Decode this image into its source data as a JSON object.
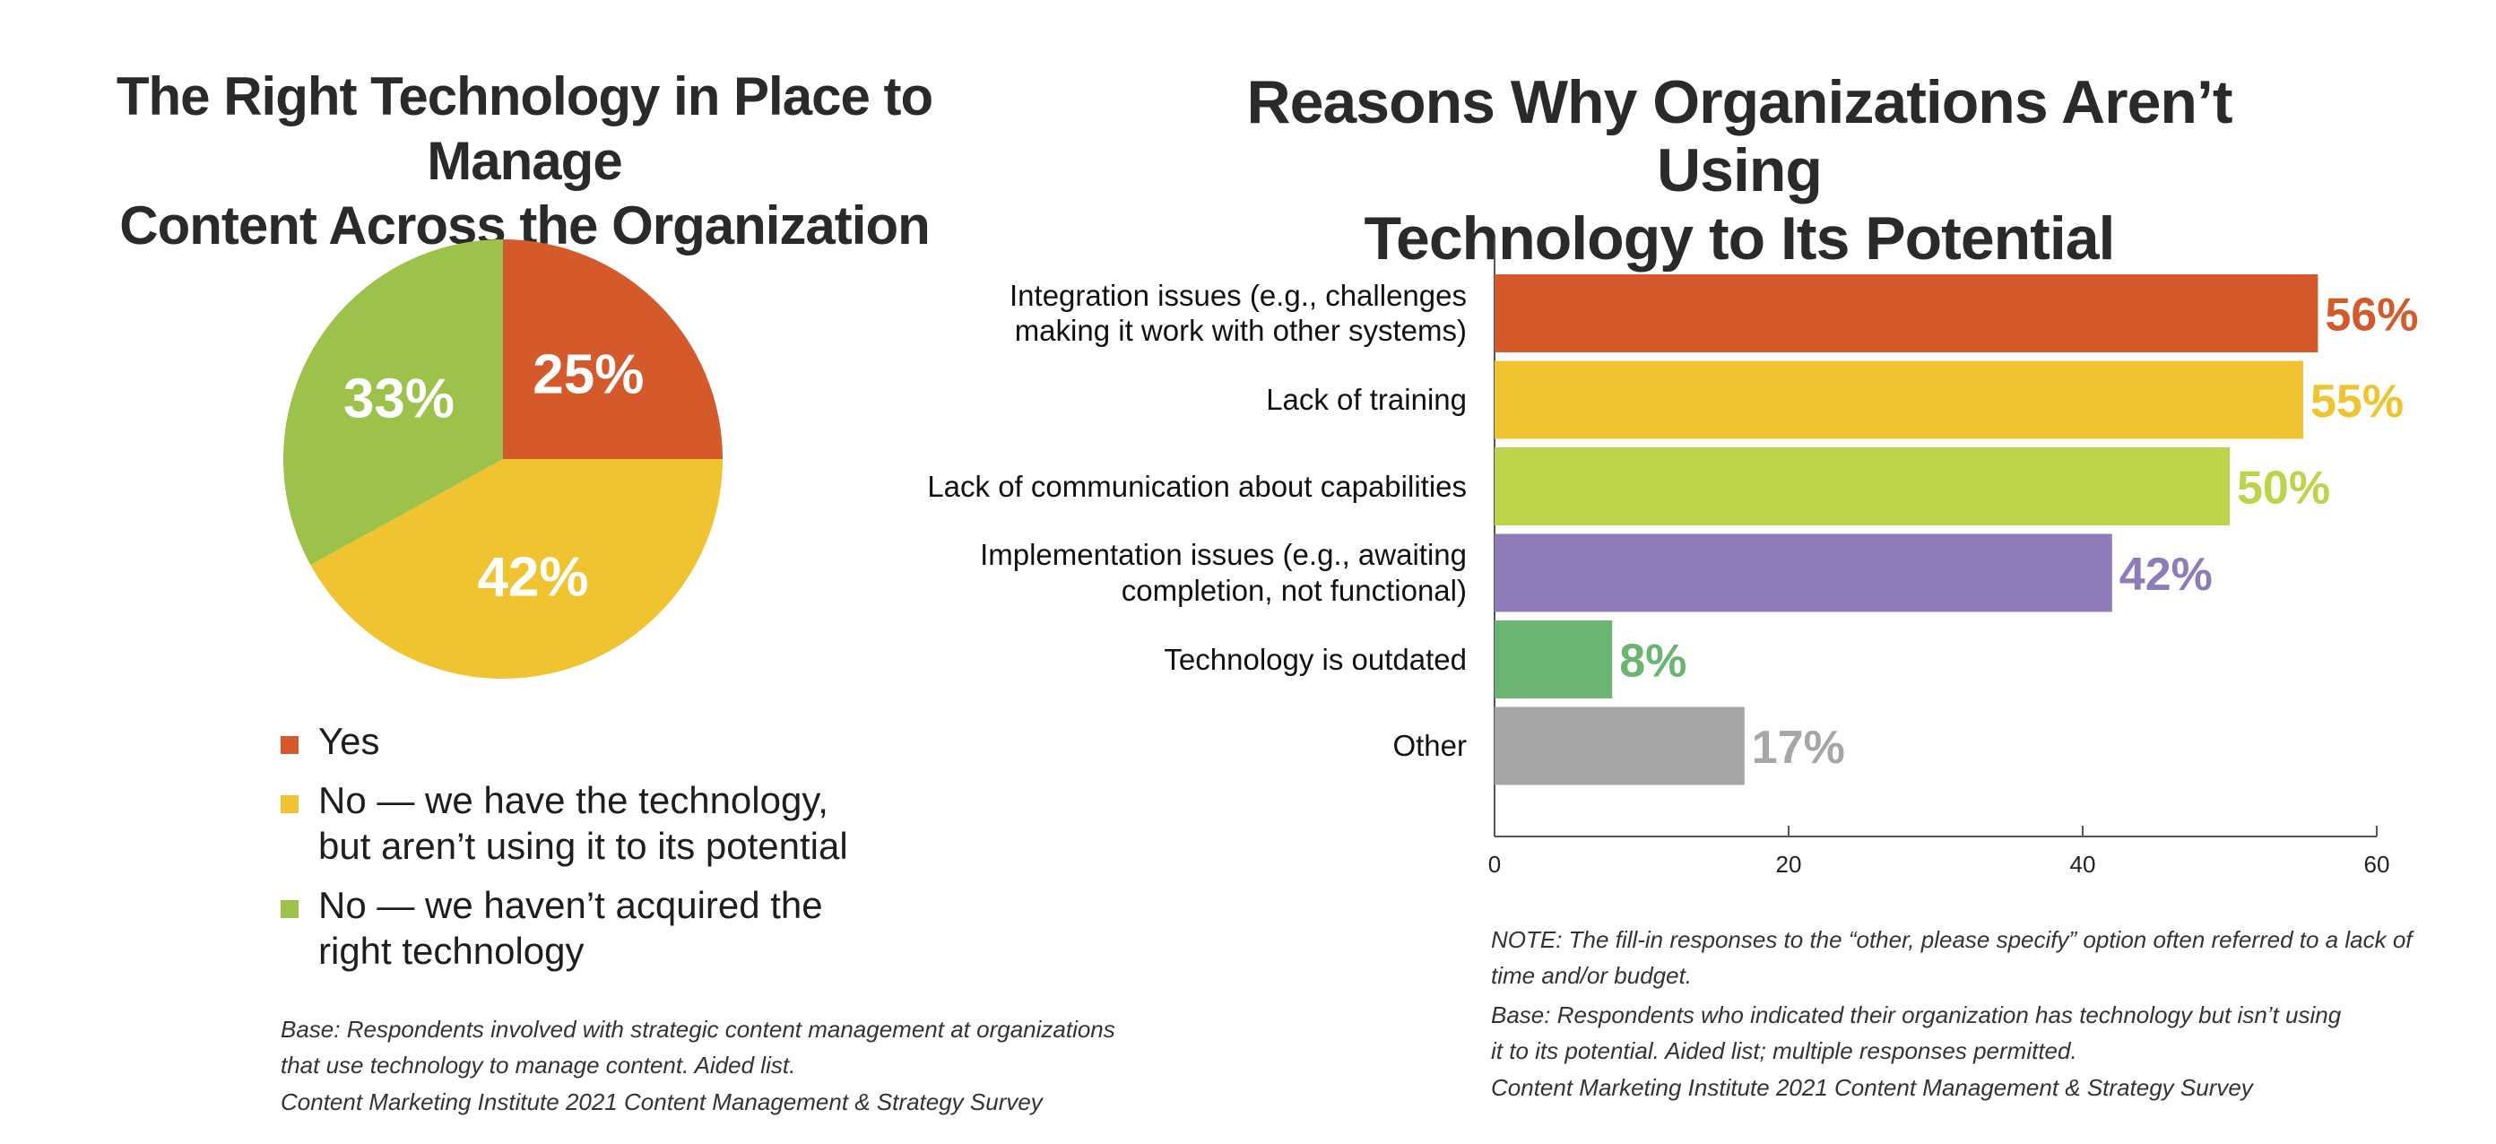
{
  "left_title": {
    "line1": "The Right Technology in Place to Manage",
    "line2": "Content Across the Organization"
  },
  "right_title": {
    "line1": "Reasons Why Organizations Aren’t Using",
    "line2": "Technology to Its Potential"
  },
  "chart_data": [
    {
      "type": "pie",
      "title": "The Right Technology in Place to Manage Content Across the Organization",
      "slices": [
        {
          "label": "Yes",
          "value": 25,
          "display": "25%",
          "color": "#d45a2b"
        },
        {
          "label": "No — we have the technology, but aren’t using it to its potential",
          "value": 42,
          "display": "42%",
          "color": "#f0c430"
        },
        {
          "label": "No — we haven’t acquired the right technology",
          "value": 33,
          "display": "33%",
          "color": "#9cc24a"
        }
      ]
    },
    {
      "type": "bar",
      "orientation": "horizontal",
      "title": "Reasons Why Organizations Aren’t Using Technology to Its Potential",
      "categories": [
        "Integration issues (e.g., challenges making it work with other systems)",
        "Lack of training",
        "Lack of communication about capabilities",
        "Implementation issues (e.g., awaiting completion, not functional)",
        "Technology is outdated",
        "Other"
      ],
      "category_lines": [
        [
          "Integration issues (e.g., challenges",
          "making it work with other systems)"
        ],
        [
          "Lack of training"
        ],
        [
          "Lack of communication about capabilities"
        ],
        [
          "Implementation issues (e.g., awaiting",
          "completion, not functional)"
        ],
        [
          "Technology is outdated"
        ],
        [
          "Other"
        ]
      ],
      "values": [
        56,
        55,
        50,
        42,
        8,
        17
      ],
      "value_labels": [
        "56%",
        "55%",
        "50%",
        "42%",
        "8%",
        "17%"
      ],
      "colors": [
        "#d45a2b",
        "#f0c430",
        "#bcd34a",
        "#8f7bb8",
        "#6bb573",
        "#a6a6a8"
      ],
      "xlim": [
        0,
        60
      ],
      "xticks": [
        0,
        20,
        40,
        60
      ],
      "xlabel": "",
      "ylabel": ""
    }
  ],
  "legend": [
    {
      "lines": [
        "Yes"
      ],
      "color": "#d45a2b"
    },
    {
      "lines": [
        "No — we have the technology,",
        "but aren’t using it to its potential"
      ],
      "color": "#f0c430"
    },
    {
      "lines": [
        "No — we haven’t acquired the",
        "right technology"
      ],
      "color": "#9cc24a"
    }
  ],
  "left_base": {
    "line1": "Base: Respondents involved with strategic content management at organizations",
    "line2": "that use technology  to manage content. Aided list.",
    "line3": "Content Marketing Institute 2021 Content Management & Strategy Survey"
  },
  "right_note": {
    "line1": "NOTE: The fill-in responses to the “other, please specify” option often referred to a lack of",
    "line2": "time and/or budget."
  },
  "right_base": {
    "line1": "Base: Respondents who indicated their organization has technology but isn’t using",
    "line2": "it to its potential. Aided list; multiple responses permitted.",
    "line3": "Content Marketing Institute 2021 Content Management & Strategy Survey"
  }
}
